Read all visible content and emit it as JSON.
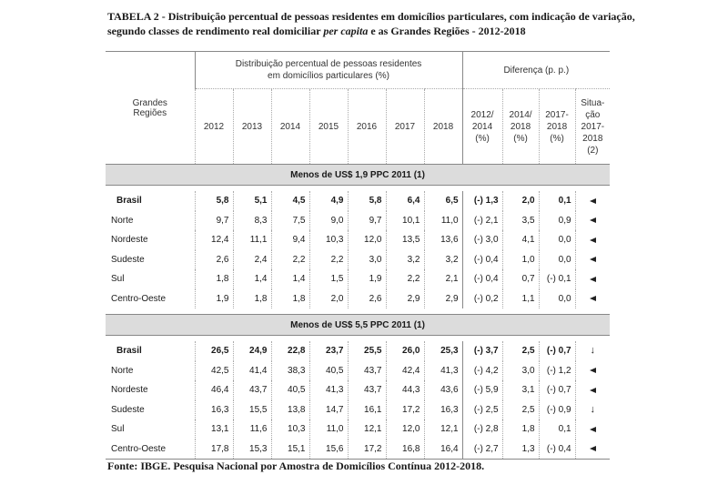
{
  "title": {
    "line1": "TABELA 2 - Distribuição percentual de pessoas residentes em domicílios particulares, com indicação de variação,",
    "line2a": "segundo classes de rendimento real domiciliar ",
    "line2i": "per capita",
    "line2b": " e as Grandes Regiões - 2012-2018"
  },
  "header": {
    "regions_label": "Grandes\nRegiões",
    "dist_group": "Distribuição percentual de pessoas residentes\nem domicílios particulares (%)",
    "diff_group": "Diferença (p. p.)",
    "years": [
      "2012",
      "2013",
      "2014",
      "2015",
      "2016",
      "2017",
      "2018"
    ],
    "diff_cols": [
      "2012/\n2014\n(%)",
      "2014/\n2018\n(%)",
      "2017-\n2018\n(%)"
    ],
    "situation": "Situa-\nção\n2017-\n2018\n(2)"
  },
  "sections": [
    {
      "label": "Menos de US$ 1,9 PPC 2011 (1)",
      "rows": [
        {
          "region": "Brasil",
          "bold": true,
          "values": [
            "5,8",
            "5,1",
            "4,5",
            "4,9",
            "5,8",
            "6,4",
            "6,5"
          ],
          "diffs": [
            "(-) 1,3",
            "2,0",
            "0,1"
          ],
          "arrow": "left"
        },
        {
          "region": "Norte",
          "bold": false,
          "values": [
            "9,7",
            "8,3",
            "7,5",
            "9,0",
            "9,7",
            "10,1",
            "11,0"
          ],
          "diffs": [
            "(-) 2,1",
            "3,5",
            "0,9"
          ],
          "arrow": "left"
        },
        {
          "region": "Nordeste",
          "bold": false,
          "values": [
            "12,4",
            "11,1",
            "9,4",
            "10,3",
            "12,0",
            "13,5",
            "13,6"
          ],
          "diffs": [
            "(-) 3,0",
            "4,1",
            "0,0"
          ],
          "arrow": "left"
        },
        {
          "region": "Sudeste",
          "bold": false,
          "values": [
            "2,6",
            "2,4",
            "2,2",
            "2,2",
            "3,0",
            "3,2",
            "3,2"
          ],
          "diffs": [
            "(-) 0,4",
            "1,0",
            "0,0"
          ],
          "arrow": "left"
        },
        {
          "region": "Sul",
          "bold": false,
          "values": [
            "1,8",
            "1,4",
            "1,4",
            "1,5",
            "1,9",
            "2,2",
            "2,1"
          ],
          "diffs": [
            "(-) 0,4",
            "0,7",
            "(-) 0,1"
          ],
          "arrow": "left"
        },
        {
          "region": "Centro-Oeste",
          "bold": false,
          "values": [
            "1,9",
            "1,8",
            "1,8",
            "2,0",
            "2,6",
            "2,9",
            "2,9"
          ],
          "diffs": [
            "(-) 0,2",
            "1,1",
            "0,0"
          ],
          "arrow": "left"
        }
      ]
    },
    {
      "label": "Menos de US$ 5,5 PPC 2011 (1)",
      "rows": [
        {
          "region": "Brasil",
          "bold": true,
          "values": [
            "26,5",
            "24,9",
            "22,8",
            "23,7",
            "25,5",
            "26,0",
            "25,3"
          ],
          "diffs": [
            "(-) 3,7",
            "2,5",
            "(-) 0,7"
          ],
          "arrow": "down"
        },
        {
          "region": "Norte",
          "bold": false,
          "values": [
            "42,5",
            "41,4",
            "38,3",
            "40,5",
            "43,7",
            "42,4",
            "41,3"
          ],
          "diffs": [
            "(-) 4,2",
            "3,0",
            "(-) 1,2"
          ],
          "arrow": "left"
        },
        {
          "region": "Nordeste",
          "bold": false,
          "values": [
            "46,4",
            "43,7",
            "40,5",
            "41,3",
            "43,7",
            "44,3",
            "43,6"
          ],
          "diffs": [
            "(-) 5,9",
            "3,1",
            "(-) 0,7"
          ],
          "arrow": "left"
        },
        {
          "region": "Sudeste",
          "bold": false,
          "values": [
            "16,3",
            "15,5",
            "13,8",
            "14,7",
            "16,1",
            "17,2",
            "16,3"
          ],
          "diffs": [
            "(-) 2,5",
            "2,5",
            "(-) 0,9"
          ],
          "arrow": "down"
        },
        {
          "region": "Sul",
          "bold": false,
          "values": [
            "13,1",
            "11,6",
            "10,3",
            "11,0",
            "12,1",
            "12,0",
            "12,1"
          ],
          "diffs": [
            "(-) 2,8",
            "1,8",
            "0,1"
          ],
          "arrow": "left"
        },
        {
          "region": "Centro-Oeste",
          "bold": false,
          "values": [
            "17,8",
            "15,3",
            "15,1",
            "15,6",
            "17,2",
            "16,8",
            "16,4"
          ],
          "diffs": [
            "(-) 2,7",
            "1,3",
            "(-) 0,4"
          ],
          "arrow": "left"
        }
      ]
    }
  ],
  "source": "Fonte: IBGE. Pesquisa Nacional por Amostra de Domicílios Contínua 2012-2018."
}
